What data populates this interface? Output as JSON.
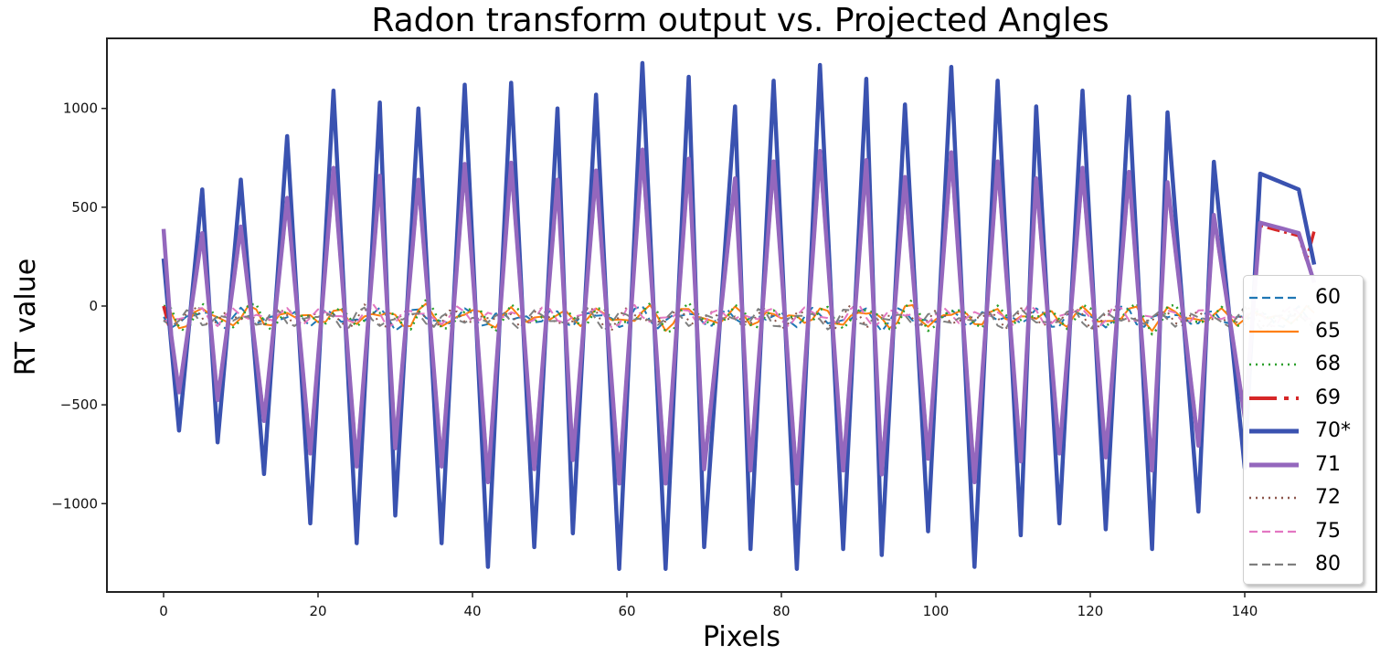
{
  "chart_data": {
    "type": "line",
    "title": "Radon transform output vs. Projected Angles",
    "xlabel": "Pixels",
    "ylabel": "RT value",
    "xlim": [
      -7.5,
      156.5
    ],
    "ylim": [
      -1440,
      1330
    ],
    "xticks": [
      0,
      20,
      40,
      60,
      80,
      100,
      120,
      140
    ],
    "yticks": [
      -1000,
      -500,
      0,
      500,
      1000
    ],
    "xtick_labels": [
      "0",
      "20",
      "40",
      "60",
      "80",
      "100",
      "120",
      "140"
    ],
    "ytick_labels": [
      "−1000",
      "−500",
      "0",
      "500",
      "1000"
    ],
    "grid": false,
    "legend_position": "lower right",
    "x_range": [
      0,
      149
    ],
    "period_pixels": 5.7,
    "series": [
      {
        "name": "60",
        "color": "#1f77b4",
        "style": "dashed",
        "width": 2,
        "amplitude": 55,
        "offset": -60,
        "phase": 1.2,
        "peaks": []
      },
      {
        "name": "65",
        "color": "#ff7f0e",
        "style": "solid",
        "width": 2,
        "amplitude": 60,
        "offset": -55,
        "phase": 0.3
      },
      {
        "name": "68",
        "color": "#2ca02c",
        "style": "dotted",
        "width": 2.5,
        "amplitude": 85,
        "offset": -55,
        "phase": 0.1
      },
      {
        "name": "69",
        "color": "#d62728",
        "style": "dashdot",
        "width": 3.5,
        "amplitude": 740,
        "offset": -60,
        "phase": 0.0
      },
      {
        "name": "70*",
        "color": "#3a52b0",
        "style": "solid",
        "width": 4.5,
        "amplitude": 1150,
        "offset": -60,
        "phase": 0.0
      },
      {
        "name": "71",
        "color": "#9467bd",
        "style": "solid",
        "width": 4.5,
        "amplitude": 760,
        "offset": -60,
        "phase": 0.0
      },
      {
        "name": "72",
        "color": "#8c564b",
        "style": "dotted",
        "width": 2,
        "amplitude": 60,
        "offset": -60,
        "phase": 2.4
      },
      {
        "name": "75",
        "color": "#e377c2",
        "style": "dashed",
        "width": 2,
        "amplitude": 55,
        "offset": -50,
        "phase": 1.9
      },
      {
        "name": "80",
        "color": "#7f7f7f",
        "style": "dashed",
        "width": 2,
        "amplitude": 50,
        "offset": -65,
        "phase": 2.8
      }
    ],
    "blue_70_peaks": [
      {
        "x": 5,
        "y": 590
      },
      {
        "x": 10,
        "y": 640
      },
      {
        "x": 16,
        "y": 860
      },
      {
        "x": 22,
        "y": 1090
      },
      {
        "x": 28,
        "y": 1030
      },
      {
        "x": 33,
        "y": 1000
      },
      {
        "x": 39,
        "y": 1120
      },
      {
        "x": 45,
        "y": 1130
      },
      {
        "x": 51,
        "y": 1000
      },
      {
        "x": 56,
        "y": 1070
      },
      {
        "x": 62,
        "y": 1230
      },
      {
        "x": 68,
        "y": 1160
      },
      {
        "x": 74,
        "y": 1010
      },
      {
        "x": 79,
        "y": 1140
      },
      {
        "x": 85,
        "y": 1220
      },
      {
        "x": 91,
        "y": 1150
      },
      {
        "x": 96,
        "y": 1020
      },
      {
        "x": 102,
        "y": 1210
      },
      {
        "x": 108,
        "y": 1140
      },
      {
        "x": 113,
        "y": 1010
      },
      {
        "x": 119,
        "y": 1090
      },
      {
        "x": 125,
        "y": 1060
      },
      {
        "x": 130,
        "y": 980
      },
      {
        "x": 136,
        "y": 730
      },
      {
        "x": 142,
        "y": 670
      },
      {
        "x": 147,
        "y": 590
      }
    ],
    "blue_70_troughs": [
      {
        "x": 2,
        "y": -630
      },
      {
        "x": 7,
        "y": -690
      },
      {
        "x": 13,
        "y": -850
      },
      {
        "x": 19,
        "y": -1100
      },
      {
        "x": 25,
        "y": -1200
      },
      {
        "x": 30,
        "y": -1060
      },
      {
        "x": 36,
        "y": -1200
      },
      {
        "x": 42,
        "y": -1320
      },
      {
        "x": 48,
        "y": -1220
      },
      {
        "x": 53,
        "y": -1150
      },
      {
        "x": 59,
        "y": -1330
      },
      {
        "x": 65,
        "y": -1330
      },
      {
        "x": 70,
        "y": -1220
      },
      {
        "x": 76,
        "y": -1230
      },
      {
        "x": 82,
        "y": -1330
      },
      {
        "x": 88,
        "y": -1230
      },
      {
        "x": 93,
        "y": -1260
      },
      {
        "x": 99,
        "y": -1140
      },
      {
        "x": 105,
        "y": -1320
      },
      {
        "x": 111,
        "y": -1160
      },
      {
        "x": 116,
        "y": -1100
      },
      {
        "x": 122,
        "y": -1130
      },
      {
        "x": 128,
        "y": -1230
      },
      {
        "x": 134,
        "y": -1040
      },
      {
        "x": 140,
        "y": -820
      }
    ],
    "start_values": {
      "70*": 240,
      "71": 390,
      "69": 0
    },
    "end_values": {
      "70*": 210,
      "69": 380
    }
  },
  "legend": {
    "items": [
      {
        "label": "60",
        "color": "#1f77b4",
        "style": "dashed"
      },
      {
        "label": "65",
        "color": "#ff7f0e",
        "style": "solid"
      },
      {
        "label": "68",
        "color": "#2ca02c",
        "style": "dotted"
      },
      {
        "label": "69",
        "color": "#d62728",
        "style": "dashdot"
      },
      {
        "label": "70*",
        "color": "#3a52b0",
        "style": "solid-thick"
      },
      {
        "label": "71",
        "color": "#9467bd",
        "style": "solid-thick"
      },
      {
        "label": "72",
        "color": "#8c564b",
        "style": "dotted"
      },
      {
        "label": "75",
        "color": "#e377c2",
        "style": "dashed"
      },
      {
        "label": "80",
        "color": "#7f7f7f",
        "style": "dashed"
      }
    ]
  }
}
